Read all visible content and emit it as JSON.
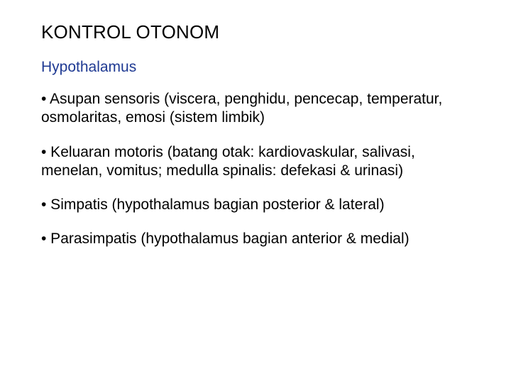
{
  "slide": {
    "title": "KONTROL OTONOM",
    "subtitle": "Hypothalamus",
    "bullets": [
      "• Asupan sensoris (viscera, penghidu, pencecap, temperatur, osmolaritas, emosi (sistem limbik)",
      "• Keluaran motoris (batang otak: kardiovaskular, salivasi, menelan, vomitus; medulla spinalis: defekasi & urinasi)",
      "• Simpatis (hypothalamus bagian posterior & lateral)",
      "• Parasimpatis (hypothalamus bagian anterior & medial)"
    ],
    "colors": {
      "title": "#000000",
      "subtitle": "#1f3a93",
      "body": "#000000",
      "background": "#ffffff"
    },
    "typography": {
      "title_fontsize": 26,
      "subtitle_fontsize": 21,
      "body_fontsize": 21,
      "font_family": "Arial"
    }
  }
}
